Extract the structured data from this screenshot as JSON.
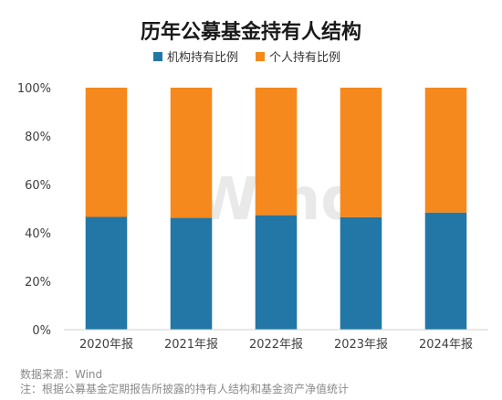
{
  "chart_data": {
    "type": "bar",
    "stacked": true,
    "title": "历年公募基金持有人结构",
    "categories": [
      "2020年报",
      "2021年报",
      "2022年报",
      "2023年报",
      "2024年报"
    ],
    "series": [
      {
        "name": "机构持有比例",
        "color": "#2277a6",
        "values": [
          46.6,
          46.2,
          47.3,
          46.5,
          48.4
        ]
      },
      {
        "name": "个人持有比例",
        "color": "#f5891d",
        "values": [
          53.4,
          53.8,
          52.7,
          53.5,
          51.6
        ]
      }
    ],
    "ylim": [
      0,
      100
    ],
    "yticks": [
      "0%",
      "20%",
      "40%",
      "60%",
      "80%",
      "100%"
    ],
    "ytick_values": [
      0,
      20,
      40,
      60,
      80,
      100
    ],
    "legend_position": "top-center",
    "grid": false
  },
  "watermark": "Wind",
  "notes": {
    "source": "数据来源：Wind",
    "footnote": "注：根据公募基金定期报告所披露的持有人结构和基金资产净值统计"
  }
}
